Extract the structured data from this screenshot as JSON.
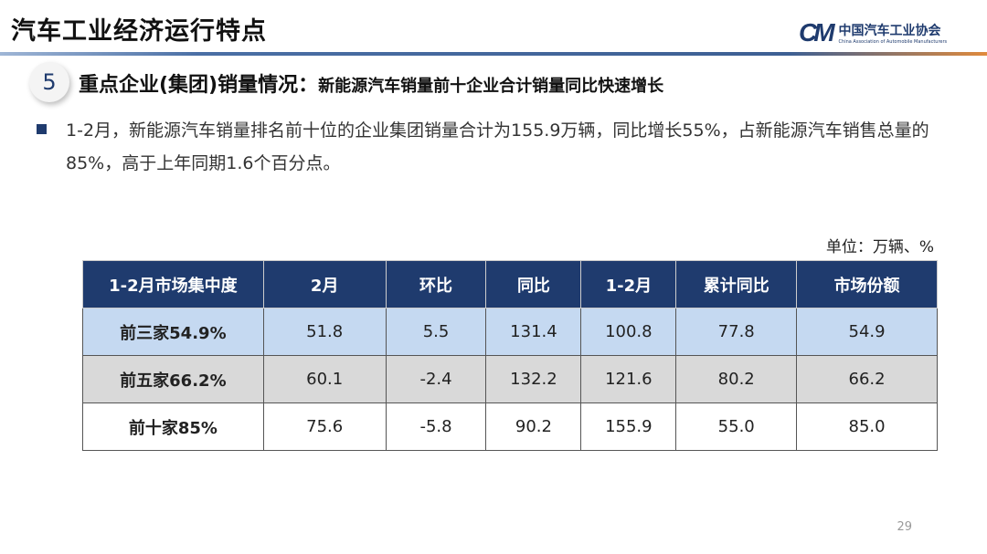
{
  "header": {
    "title": "汽车工业经济运行特点",
    "logo_mark": "CM",
    "logo_cn": "中国汽车工业协会",
    "logo_en": "China Association of Automobile Manufacturers"
  },
  "section": {
    "number": "5",
    "title": "重点企业(集团)销量情况：",
    "subtitle": "新能源汽车销量前十企业合计销量同比快速增长"
  },
  "paragraph": "1-2月，新能源汽车销量排名前十位的企业集团销量合计为155.9万辆，同比增长55%，占新能源汽车销售总量的85%，高于上年同期1.6个百分点。",
  "unit": "单位：万辆、%",
  "table": {
    "headers": [
      "1-2月市场集中度",
      "2月",
      "环比",
      "同比",
      "1-2月",
      "累计同比",
      "市场份额"
    ],
    "rows": [
      [
        "前三家54.9%",
        "51.8",
        "5.5",
        "131.4",
        "100.8",
        "77.8",
        "54.9"
      ],
      [
        "前五家66.2%",
        "60.1",
        "-2.4",
        "132.2",
        "121.6",
        "80.2",
        "66.2"
      ],
      [
        "前十家85%",
        "75.6",
        "-5.8",
        "90.2",
        "155.9",
        "55.0",
        "85.0"
      ]
    ]
  },
  "page_number": "29",
  "colors": {
    "navy": "#1f3b6e",
    "row1": "#c5d9f1",
    "row2": "#d9d9d9"
  }
}
